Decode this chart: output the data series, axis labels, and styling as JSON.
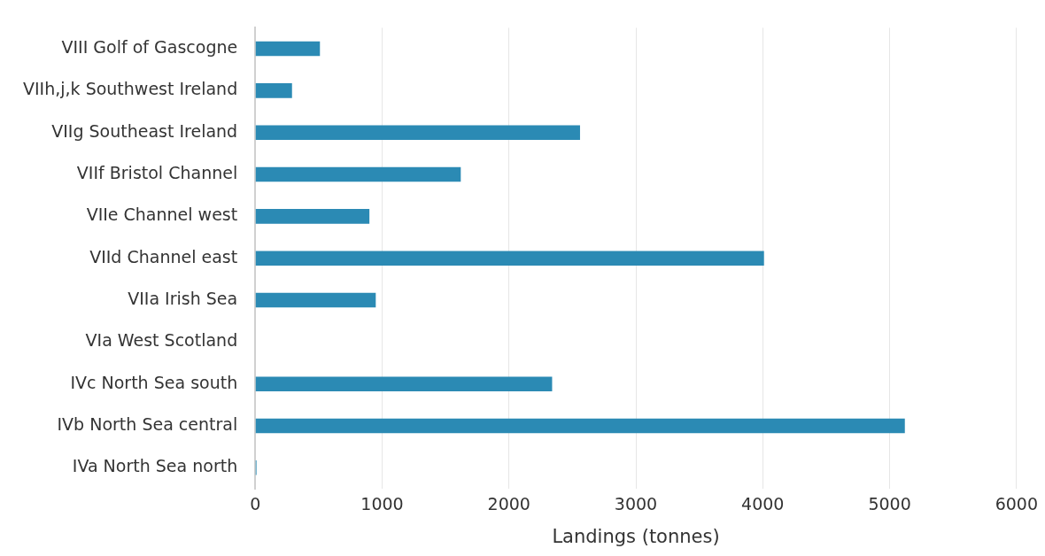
{
  "chart_data": {
    "type": "bar",
    "orientation": "horizontal",
    "xlabel": "Landings (tonnes)",
    "categories": [
      "VIII Golf of Gascogne",
      "VIIh,j,k Southwest Ireland",
      "VIIg Southeast Ireland",
      "VIIf Bristol Channel",
      "VIIe Channel west",
      "VIId Channel east",
      "VIIa Irish Sea",
      "VIa West Scotland",
      "IVc North Sea south",
      "IVb North Sea central",
      "IVa North Sea north"
    ],
    "values": [
      510,
      290,
      2560,
      1620,
      900,
      4010,
      950,
      0,
      2340,
      5120,
      10
    ],
    "color": "#2b8ab4",
    "xlim": [
      0,
      6000
    ],
    "xticks": [
      0,
      1000,
      2000,
      3000,
      4000,
      5000,
      6000
    ],
    "grid": "x"
  }
}
